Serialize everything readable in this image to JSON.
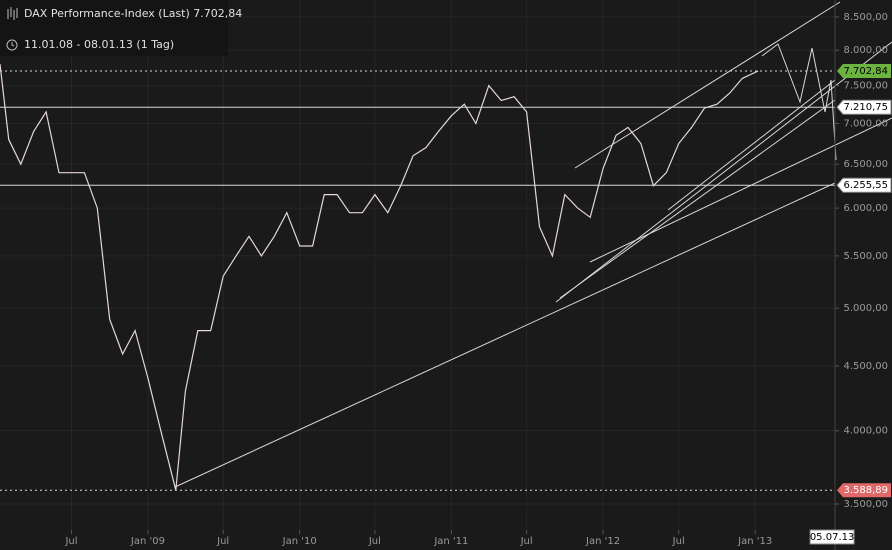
{
  "chart_data": {
    "type": "line",
    "title": "DAX Performance-Index (Last) 7.702,84",
    "subtitle": "11.01.08 - 08.01.13 (1 Tag)",
    "log_scale": true,
    "grid": true,
    "x": [
      "2008-01-11",
      "2008-02-01",
      "2008-03-01",
      "2008-04-01",
      "2008-05-01",
      "2008-06-01",
      "2008-07-01",
      "2008-08-01",
      "2008-09-01",
      "2008-10-01",
      "2008-11-01",
      "2008-12-01",
      "2009-01-01",
      "2009-02-01",
      "2009-03-09",
      "2009-04-01",
      "2009-05-01",
      "2009-06-01",
      "2009-07-01",
      "2009-08-01",
      "2009-09-01",
      "2009-10-01",
      "2009-11-01",
      "2009-12-01",
      "2010-01-01",
      "2010-02-01",
      "2010-03-01",
      "2010-04-01",
      "2010-05-01",
      "2010-06-01",
      "2010-07-01",
      "2010-08-01",
      "2010-09-01",
      "2010-10-01",
      "2010-11-01",
      "2010-12-01",
      "2011-01-01",
      "2011-02-01",
      "2011-03-01",
      "2011-04-01",
      "2011-05-01",
      "2011-06-01",
      "2011-07-01",
      "2011-08-01",
      "2011-09-01",
      "2011-10-01",
      "2011-11-01",
      "2011-12-01",
      "2012-01-01",
      "2012-02-01",
      "2012-03-01",
      "2012-04-01",
      "2012-05-01",
      "2012-06-01",
      "2012-07-01",
      "2012-08-01",
      "2012-09-01",
      "2012-10-01",
      "2012-11-01",
      "2012-12-01",
      "2013-01-08"
    ],
    "series": [
      {
        "name": "DAX Performance-Index",
        "color": "#e6d6d6",
        "values": [
          7800,
          6800,
          6500,
          6900,
          7150,
          6400,
          6400,
          6400,
          6000,
          4900,
          4600,
          4800,
          4400,
          4000,
          3589,
          4300,
          4800,
          4800,
          5300,
          5500,
          5700,
          5500,
          5700,
          5950,
          5600,
          5600,
          6150,
          6150,
          5950,
          5950,
          6150,
          5950,
          6250,
          6600,
          6700,
          6900,
          7100,
          7250,
          7000,
          7500,
          7300,
          7350,
          7150,
          5800,
          5500,
          6150,
          6000,
          5900,
          6450,
          6850,
          6950,
          6750,
          6250,
          6400,
          6750,
          6950,
          7200,
          7250,
          7400,
          7600,
          7702.84
        ]
      }
    ],
    "xlim": [
      "2008-01-11",
      "2013-07-12"
    ],
    "xticks": [
      {
        "value": "2008-07-01",
        "label": "Jul"
      },
      {
        "value": "2009-01-01",
        "label": "Jan '09"
      },
      {
        "value": "2009-07-01",
        "label": "Jul"
      },
      {
        "value": "2010-01-01",
        "label": "Jan '10"
      },
      {
        "value": "2010-07-01",
        "label": "Jul"
      },
      {
        "value": "2011-01-01",
        "label": "Jan '11"
      },
      {
        "value": "2011-07-01",
        "label": "Jul"
      },
      {
        "value": "2012-01-01",
        "label": "Jan '12"
      },
      {
        "value": "2012-07-01",
        "label": "Jul"
      },
      {
        "value": "2013-01-01",
        "label": "Jan '13"
      }
    ],
    "ylim": [
      3338,
      8766
    ],
    "yticks": [
      {
        "value": 3500,
        "label": "3.500,00"
      },
      {
        "value": 4000,
        "label": "4.000,00"
      },
      {
        "value": 4500,
        "label": "4.500,00"
      },
      {
        "value": 5000,
        "label": "5.000,00"
      },
      {
        "value": 5500,
        "label": "5.500,00"
      },
      {
        "value": 6000,
        "label": "6.000,00"
      },
      {
        "value": 6500,
        "label": "6.500,00"
      },
      {
        "value": 7000,
        "label": "7.000,00"
      },
      {
        "value": 7500,
        "label": "7.500,00"
      },
      {
        "value": 8000,
        "label": "8.000,00"
      },
      {
        "value": 8500,
        "label": "8.500,00"
      }
    ],
    "hlines": [
      {
        "value": 7702.84,
        "label": "7.702,84",
        "dashed": true,
        "color": "#6db33f"
      },
      {
        "value": 7210.75,
        "label": "7.210,75",
        "dashed": false,
        "color": "#ffffff"
      },
      {
        "value": 6255.55,
        "label": "6.255,55",
        "dashed": false,
        "color": "#ffffff"
      },
      {
        "value": 3588.89,
        "label": "3.588,89",
        "dashed": true,
        "color": "#e06868"
      }
    ],
    "cursor": {
      "value": "2013-07-05",
      "label": "05.07.13"
    }
  }
}
